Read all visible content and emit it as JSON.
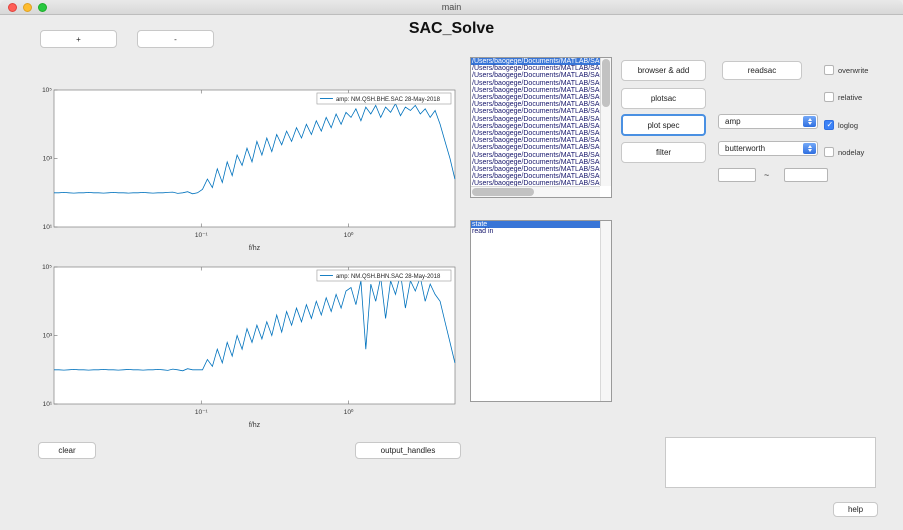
{
  "window": {
    "title": "main"
  },
  "app": {
    "title": "SAC_Solve"
  },
  "toolbar": {
    "plus": "+",
    "minus": "-"
  },
  "buttons": {
    "browser_add": "browser & add",
    "plotsac": "plotsac",
    "plot_spec": "plot spec",
    "filter": "filter",
    "readsac": "readsac",
    "clear": "clear",
    "output_handles": "output_handles",
    "help": "help"
  },
  "checkboxes": [
    {
      "label": "overwrite",
      "checked": false
    },
    {
      "label": "relative",
      "checked": false
    },
    {
      "label": "loglog",
      "checked": true
    },
    {
      "label": "nodelay",
      "checked": false
    }
  ],
  "dropdowns": {
    "component": "amp",
    "filter_type": "butterworth"
  },
  "range": {
    "from": "",
    "to": "",
    "separator": "~"
  },
  "file_list": {
    "selected_index": 0,
    "items": [
      "/Users/baogege/Documents/MATLAB/SAC",
      "/Users/baogege/Documents/MATLAB/SAC",
      "/Users/baogege/Documents/MATLAB/SAC",
      "/Users/baogege/Documents/MATLAB/SAC",
      "/Users/baogege/Documents/MATLAB/SAC",
      "/Users/baogege/Documents/MATLAB/SAC",
      "/Users/baogege/Documents/MATLAB/SAC",
      "/Users/baogege/Documents/MATLAB/SAC",
      "/Users/baogege/Documents/MATLAB/SAC",
      "/Users/baogege/Documents/MATLAB/SAC",
      "/Users/baogege/Documents/MATLAB/SAC",
      "/Users/baogege/Documents/MATLAB/SAC",
      "/Users/baogege/Documents/MATLAB/SAC",
      "/Users/baogege/Documents/MATLAB/SAC",
      "/Users/baogege/Documents/MATLAB/SAC",
      "/Users/baogege/Documents/MATLAB/SAC",
      "/Users/baogege/Documents/MATLAB/SAC",
      "/Users/baogege/Documents/MATLAB/SAC"
    ]
  },
  "state_list": {
    "selected_index": 0,
    "items": [
      "state",
      "read in"
    ]
  },
  "colors": {
    "line": "#0072bd",
    "selection": "#3875d7",
    "accent": "#4a90e2",
    "checkbox_checked": "#3b82f7"
  },
  "chart_data": [
    {
      "type": "line",
      "legend": "amp: NM.QSH.BHE.SAC 28-May-2018",
      "xlabel": "f/hz",
      "xscale": "log",
      "yscale": "log",
      "xlim_log": [
        -2,
        0.722
      ],
      "ylim_log": [
        1,
        5
      ],
      "xticks": [
        {
          "log": -1,
          "label": "10⁻¹"
        },
        {
          "log": 0,
          "label": "10⁰"
        }
      ],
      "yticks": [
        {
          "log": 1,
          "label": "10¹"
        },
        {
          "log": 3,
          "label": "10³"
        },
        {
          "log": 5,
          "label": "10⁵"
        }
      ],
      "logx_start": -2,
      "logx_step": 0.0336,
      "logy_values": [
        2.0,
        2.0,
        2.01,
        2.0,
        1.99,
        2.0,
        2.0,
        2.01,
        2.0,
        2.0,
        1.99,
        2.0,
        2.01,
        2.0,
        2.0,
        1.99,
        2.0,
        2.0,
        2.01,
        2.0,
        1.99,
        2.0,
        2.0,
        2.01,
        2.02,
        1.98,
        2.0,
        2.03,
        1.97,
        2.0,
        2.1,
        2.4,
        2.15,
        2.7,
        2.3,
        2.9,
        2.5,
        3.1,
        2.8,
        3.3,
        2.9,
        3.5,
        3.1,
        3.6,
        3.2,
        3.7,
        3.4,
        3.8,
        3.5,
        3.9,
        3.6,
        4.0,
        3.7,
        4.1,
        3.8,
        4.2,
        3.9,
        4.3,
        4.0,
        4.35,
        4.2,
        4.45,
        4.1,
        4.5,
        4.3,
        4.55,
        4.2,
        4.5,
        4.35,
        4.6,
        4.25,
        4.5,
        4.4,
        4.55,
        4.3,
        4.45,
        4.2,
        4.4,
        4.0,
        3.5,
        3.0,
        2.4
      ]
    },
    {
      "type": "line",
      "legend": "amp: NM.QSH.BHN.SAC 28-May-2018",
      "xlabel": "f/hz",
      "xscale": "log",
      "yscale": "log",
      "xlim_log": [
        -2,
        0.722
      ],
      "ylim_log": [
        1,
        5
      ],
      "xticks": [
        {
          "log": -1,
          "label": "10⁻¹"
        },
        {
          "log": 0,
          "label": "10⁰"
        }
      ],
      "yticks": [
        {
          "log": 1,
          "label": "10¹"
        },
        {
          "log": 3,
          "label": "10³"
        },
        {
          "log": 5,
          "label": "10⁵"
        }
      ],
      "logx_start": -2,
      "logx_step": 0.0336,
      "logy_values": [
        2.0,
        2.0,
        1.99,
        2.0,
        2.01,
        2.0,
        2.0,
        1.99,
        2.0,
        2.0,
        2.01,
        2.0,
        2.0,
        1.99,
        2.0,
        2.01,
        2.0,
        2.0,
        1.99,
        2.0,
        2.0,
        2.01,
        2.0,
        1.98,
        2.02,
        2.0,
        1.97,
        2.03,
        2.0,
        2.0,
        2.0,
        2.3,
        2.1,
        2.6,
        2.2,
        2.8,
        2.4,
        3.0,
        2.6,
        3.2,
        2.8,
        3.3,
        2.9,
        3.4,
        3.0,
        3.6,
        3.1,
        3.7,
        3.3,
        3.8,
        3.4,
        3.9,
        3.5,
        4.0,
        3.6,
        4.1,
        3.7,
        4.2,
        3.8,
        4.3,
        4.4,
        3.9,
        4.6,
        2.6,
        4.5,
        4.0,
        4.7,
        3.5,
        4.6,
        4.2,
        4.8,
        3.8,
        4.6,
        4.3,
        4.7,
        4.0,
        4.5,
        4.2,
        4.0,
        3.4,
        2.8,
        2.2
      ]
    }
  ]
}
